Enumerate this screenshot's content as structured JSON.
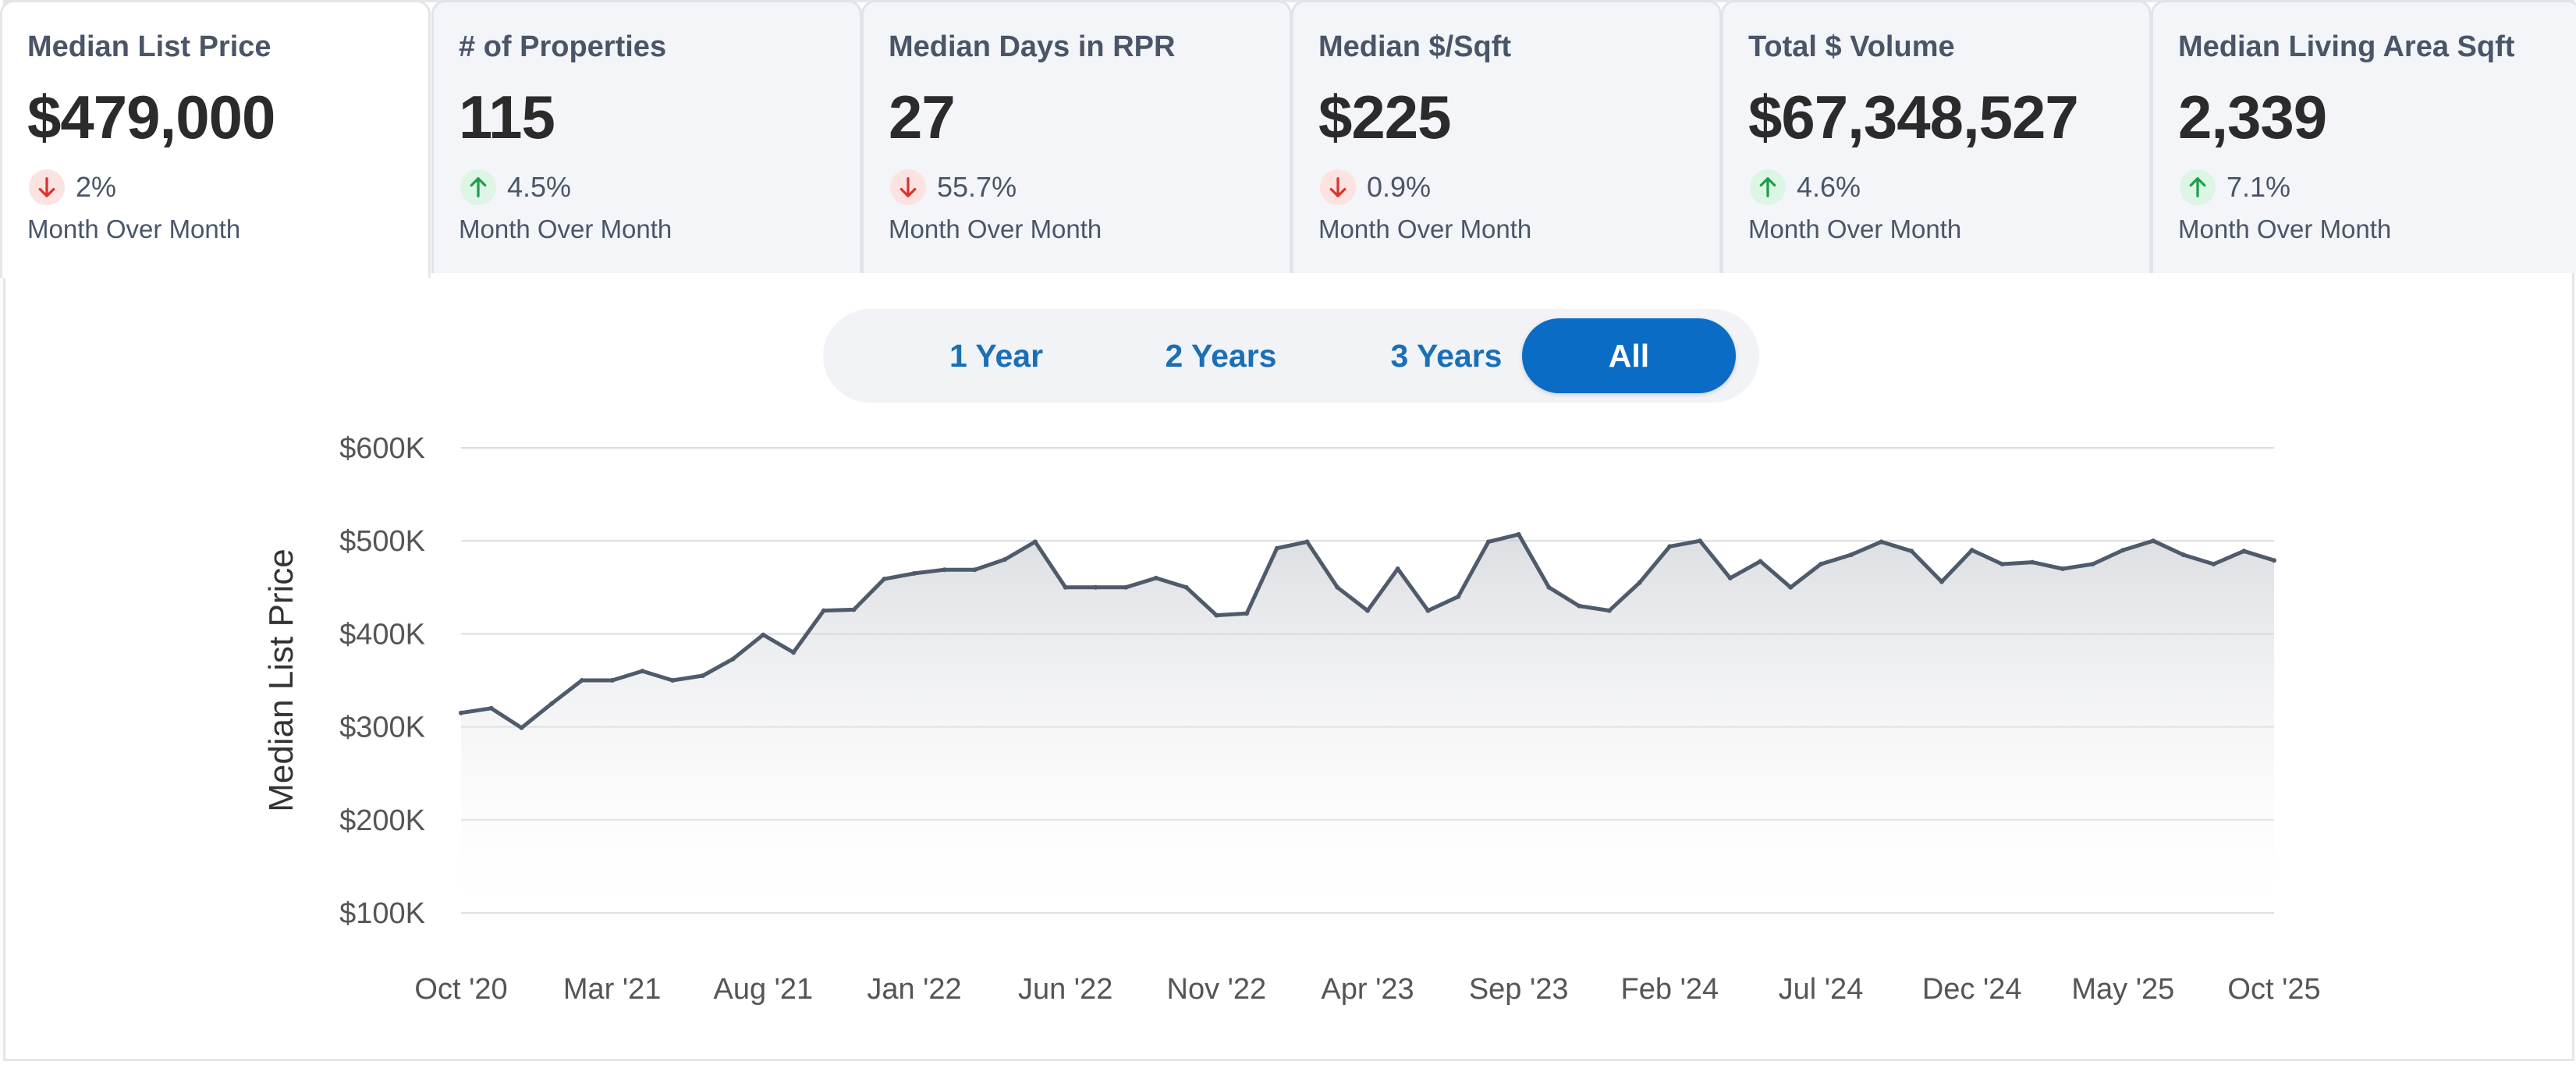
{
  "tiles": [
    {
      "label": "Median List Price",
      "value": "$479,000",
      "direction": "down",
      "change": "2%",
      "sub": "Month Over Month"
    },
    {
      "label": "# of Properties",
      "value": "115",
      "direction": "up",
      "change": "4.5%",
      "sub": "Month Over Month"
    },
    {
      "label": "Median Days in RPR",
      "value": "27",
      "direction": "down",
      "change": "55.7%",
      "sub": "Month Over Month"
    },
    {
      "label": "Median $/Sqft",
      "value": "$225",
      "direction": "down",
      "change": "0.9%",
      "sub": "Month Over Month"
    },
    {
      "label": "Total $ Volume",
      "value": "$67,348,527",
      "direction": "up",
      "change": "4.6%",
      "sub": "Month Over Month"
    },
    {
      "label": "Median Living Area Sqft",
      "value": "2,339",
      "direction": "up",
      "change": "7.1%",
      "sub": "Month Over Month"
    }
  ],
  "range_options": [
    "1 Year",
    "2 Years",
    "3 Years",
    "All"
  ],
  "selected_range": "All",
  "colors": {
    "down": "#d9342b",
    "up": "#1e9e4a",
    "accent": "#0a6cc4",
    "line": "#4f5b6b"
  },
  "chart_data": {
    "type": "area",
    "title": "",
    "xlabel": "",
    "ylabel": "Median List Price",
    "ylim": [
      100000,
      600000
    ],
    "yticks": [
      100000,
      200000,
      300000,
      400000,
      500000,
      600000
    ],
    "ytick_labels": [
      "$100K",
      "$200K",
      "$300K",
      "$400K",
      "$500K",
      "$600K"
    ],
    "xtick_labels": [
      "Oct '20",
      "Mar '21",
      "Aug '21",
      "Jan '22",
      "Jun '22",
      "Nov '22",
      "Apr '23",
      "Sep '23",
      "Feb '24",
      "Jul '24",
      "Dec '24",
      "May '25",
      "Oct '25"
    ],
    "x_start": "Oct '20",
    "x_end": "Oct '25",
    "grid": true,
    "series": [
      {
        "values": [
          315000,
          320000,
          299000,
          325000,
          350000,
          350000,
          360000,
          350000,
          355000,
          373000,
          399000,
          380000,
          425000,
          426000,
          459000,
          465000,
          469000,
          469000,
          480000,
          499000,
          450000,
          450000,
          450000,
          460000,
          450000,
          420000,
          422000,
          492000,
          499000,
          450000,
          425000,
          470000,
          425000,
          440000,
          499000,
          507000,
          450000,
          430000,
          425000,
          455000,
          494000,
          500000,
          460000,
          478000,
          450000,
          475000,
          485000,
          499000,
          489000,
          456000,
          490000,
          475000,
          477000,
          470000,
          475000,
          490000,
          500000,
          485000,
          475000,
          489000,
          479000
        ]
      }
    ]
  }
}
